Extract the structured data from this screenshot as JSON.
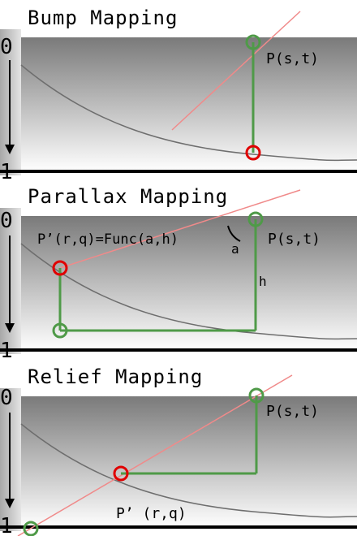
{
  "panels": [
    {
      "title": "Bump Mapping",
      "axis_top": "0",
      "axis_bottom": "1",
      "labels": {
        "p": "P(s,t)"
      }
    },
    {
      "title": "Parallax Mapping",
      "axis_top": "0",
      "axis_bottom": "1",
      "labels": {
        "p": "P(s,t)",
        "p_prime": "P’(r,q)=Func(a,h)",
        "angle": "a",
        "height": "h"
      }
    },
    {
      "title": "Relief Mapping",
      "axis_top": "0",
      "axis_bottom": "1",
      "labels": {
        "p": "P(s,t)",
        "p_prime": "P’ (r,q)"
      }
    }
  ],
  "colors": {
    "ray": "#f08a8a",
    "construction": "#4f9a48",
    "marker_green": "#4f9a48",
    "marker_red": "#e00000",
    "curve": "#6e6e6e",
    "baseline": "#000000"
  }
}
